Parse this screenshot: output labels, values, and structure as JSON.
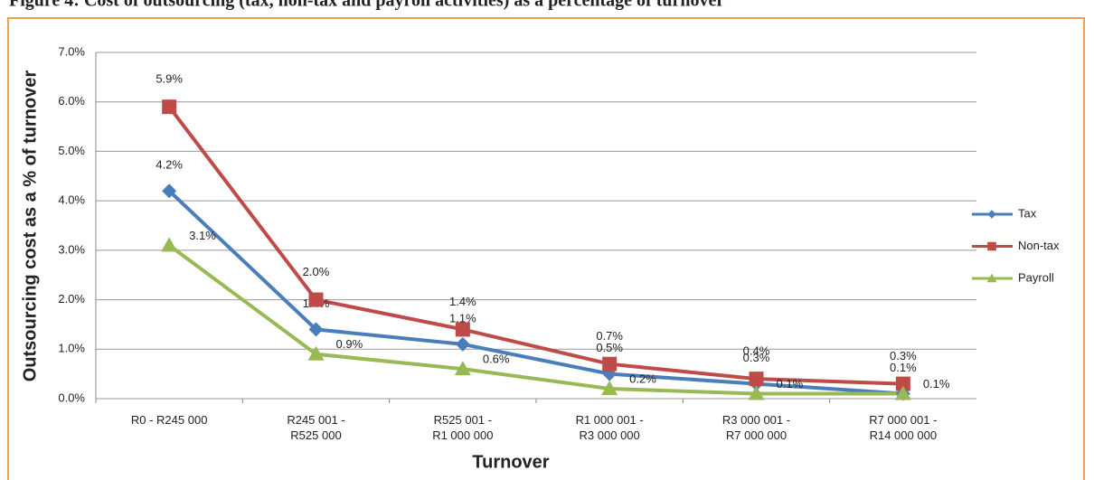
{
  "chart_data": {
    "type": "line",
    "title": "Figure 4: Cost of outsourcing (tax, non-tax and payroll activities) as a percentage of turnover",
    "x_label": "Turnover",
    "y_label": "Outsourcing cost as a % of turnover",
    "categories": [
      "R0 - R245 000",
      "R245 001 -\nR525 000",
      "R525 001 -\nR1 000 000",
      "R1 000 001 -\nR3 000 000",
      "R3 000 001 -\nR7 000 000",
      "R7 000 001 -\nR14 000 000"
    ],
    "series": [
      {
        "name": "Tax",
        "color": "#4a7ebb",
        "marker": "diamond",
        "values": [
          4.2,
          1.4,
          1.1,
          0.5,
          0.3,
          0.1
        ],
        "value_labels": [
          "4.2%",
          "1.4%",
          "1.1%",
          "0.5%",
          "0.3%",
          "0.1%"
        ]
      },
      {
        "name": "Non-tax",
        "color": "#be4b48",
        "marker": "square",
        "values": [
          5.9,
          2.0,
          1.4,
          0.7,
          0.4,
          0.3
        ],
        "value_labels": [
          "5.9%",
          "2.0%",
          "1.4%",
          "0.7%",
          "0.4%",
          "0.3%"
        ]
      },
      {
        "name": "Payroll",
        "color": "#98b954",
        "marker": "triangle",
        "values": [
          3.1,
          0.9,
          0.6,
          0.2,
          0.1,
          0.1
        ],
        "value_labels": [
          "3.1%",
          "0.9%",
          "0.6%",
          "0.2%",
          "0.1%",
          "0.1%"
        ]
      }
    ],
    "ylim": [
      0,
      7
    ],
    "yticks": [
      {
        "value": 0,
        "label": "0.0%"
      },
      {
        "value": 1,
        "label": "1.0%"
      },
      {
        "value": 2,
        "label": "2.0%"
      },
      {
        "value": 3,
        "label": "3.0%"
      },
      {
        "value": 4,
        "label": "4.0%"
      },
      {
        "value": 5,
        "label": "5.0%"
      },
      {
        "value": 6,
        "label": "6.0%"
      },
      {
        "value": 7,
        "label": "7.0%"
      }
    ],
    "grid": true,
    "legend": "right"
  }
}
